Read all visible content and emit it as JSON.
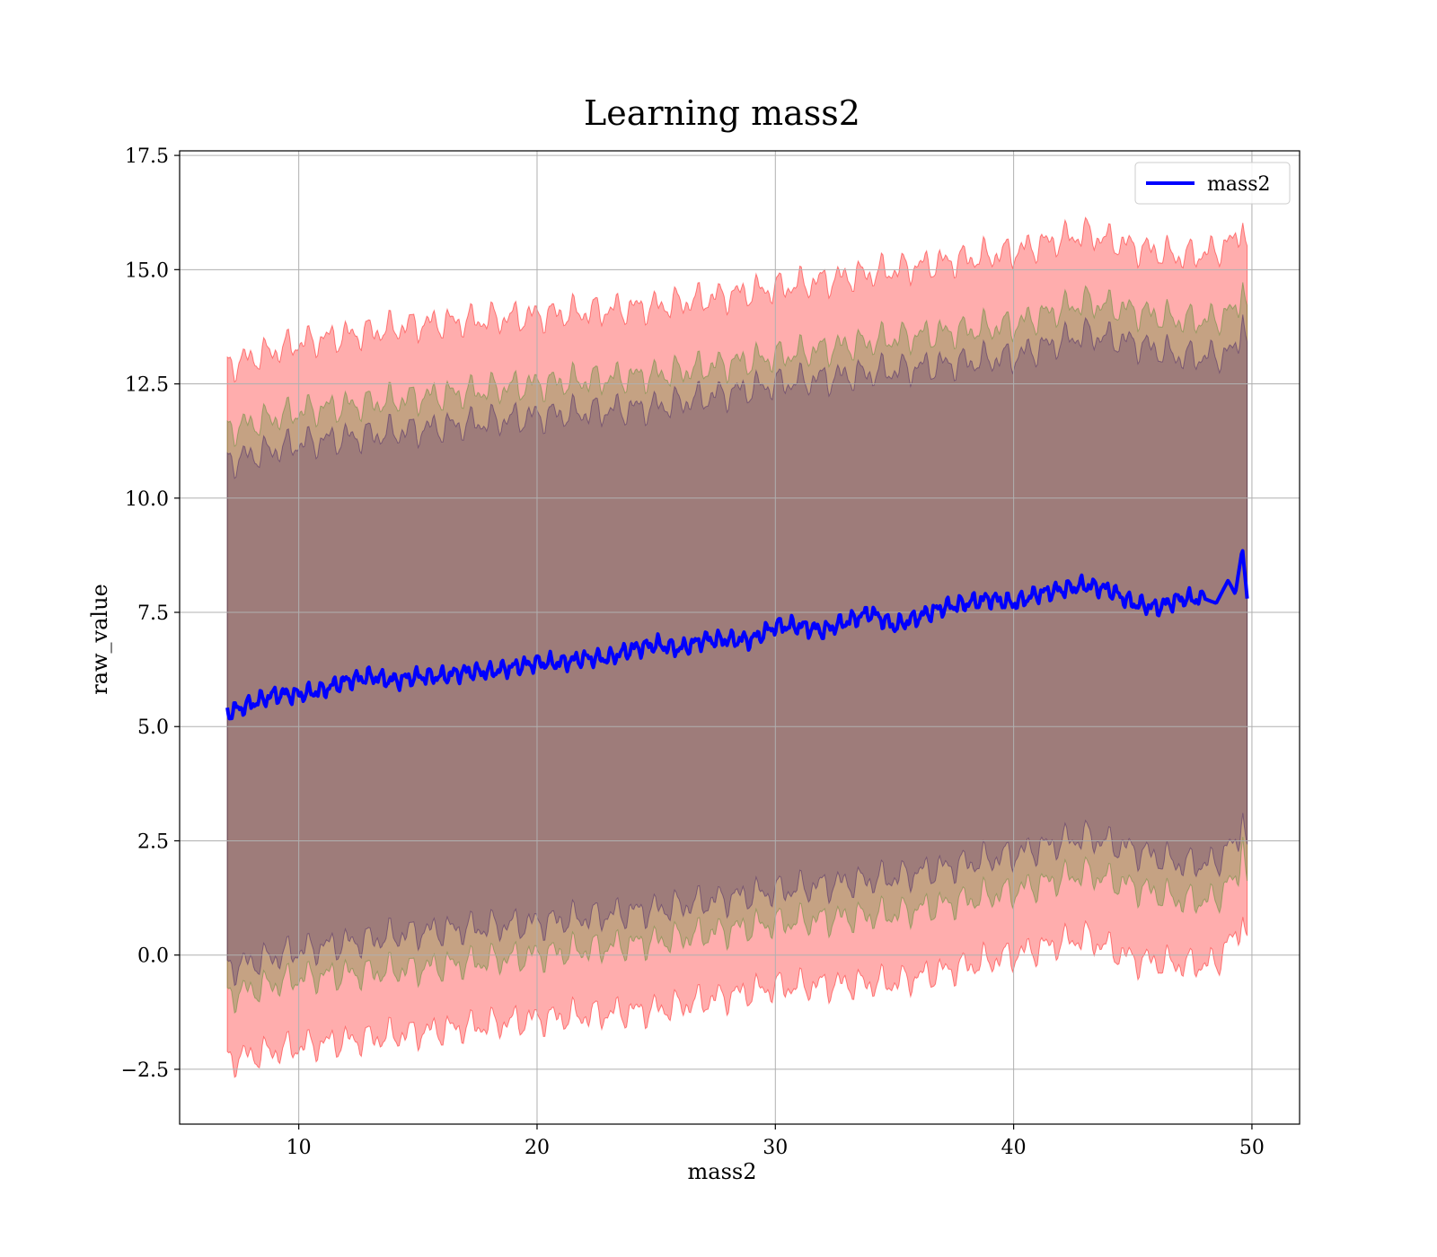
{
  "chart_data": {
    "type": "line",
    "title": "Learning mass2",
    "xlabel": "mass2",
    "ylabel": "raw_value",
    "xlim": [
      5,
      52
    ],
    "ylim": [
      -3.7,
      17.6
    ],
    "x_ticks": [
      10,
      20,
      30,
      40,
      50
    ],
    "y_ticks": [
      -2.5,
      0.0,
      2.5,
      5.0,
      7.5,
      10.0,
      12.5,
      15.0,
      17.5
    ],
    "x_tick_labels": [
      "10",
      "20",
      "30",
      "40",
      "50"
    ],
    "y_tick_labels": [
      "−2.5",
      "0.0",
      "2.5",
      "5.0",
      "7.5",
      "10.0",
      "12.5",
      "15.0",
      "17.5"
    ],
    "grid": true,
    "legend": {
      "position": "top-right",
      "entries": [
        "mass2"
      ]
    },
    "series": [
      {
        "name": "mass2",
        "color": "#0000ff",
        "x": [
          7,
          8,
          9,
          10,
          11,
          12,
          13,
          14,
          15,
          16,
          17,
          18,
          19,
          20,
          21,
          22,
          23,
          24,
          25,
          26,
          27,
          28,
          29,
          30,
          31,
          32,
          33,
          34,
          35,
          36,
          37,
          38,
          39,
          40,
          41,
          42,
          43,
          44,
          45,
          46,
          47,
          48,
          48.5,
          49,
          49.3,
          49.6,
          49.8
        ],
        "y": [
          5.3,
          5.5,
          5.7,
          5.7,
          5.8,
          6.0,
          6.1,
          6.0,
          6.1,
          6.1,
          6.2,
          6.2,
          6.3,
          6.4,
          6.4,
          6.5,
          6.5,
          6.7,
          6.8,
          6.7,
          6.9,
          6.9,
          6.9,
          7.2,
          7.2,
          7.1,
          7.3,
          7.5,
          7.2,
          7.4,
          7.6,
          7.7,
          7.8,
          7.7,
          7.9,
          8.0,
          8.1,
          8.0,
          7.7,
          7.6,
          7.8,
          7.8,
          7.7,
          8.2,
          7.9,
          8.9,
          7.8
        ]
      }
    ],
    "bands": [
      {
        "color": "#ff0000",
        "opacity": 0.32,
        "x": [
          7,
          10,
          15,
          20,
          25,
          30,
          35,
          40,
          43,
          45,
          47,
          48.5,
          49,
          49.4,
          49.6,
          49.8
        ],
        "upper": [
          12.9,
          13.4,
          13.8,
          14.0,
          14.2,
          14.6,
          15.0,
          15.4,
          15.8,
          15.5,
          15.3,
          15.4,
          15.6,
          15.6,
          16.3,
          15.3
        ],
        "lower": [
          -2.3,
          -2.0,
          -1.7,
          -1.4,
          -1.2,
          -0.7,
          -0.6,
          0.0,
          0.4,
          -0.1,
          -0.2,
          -0.2,
          0.3,
          0.3,
          1.1,
          0.2
        ]
      },
      {
        "color": "#4c8c2b",
        "opacity": 0.32,
        "x": [
          7,
          10,
          15,
          20,
          25,
          30,
          35,
          40,
          43,
          45,
          47,
          48.5,
          49,
          49.4,
          49.6,
          49.8
        ],
        "upper": [
          11.5,
          11.9,
          12.2,
          12.5,
          12.7,
          13.1,
          13.5,
          13.8,
          14.3,
          14.1,
          13.9,
          13.9,
          14.1,
          14.0,
          15.0,
          14.0
        ],
        "lower": [
          -0.9,
          -0.5,
          -0.3,
          0.0,
          0.3,
          0.7,
          0.9,
          1.4,
          1.8,
          1.5,
          1.2,
          1.2,
          1.6,
          1.5,
          2.9,
          1.4
        ]
      },
      {
        "color": "#3b1a66",
        "opacity": 0.28,
        "x": [
          7,
          10,
          15,
          20,
          25,
          30,
          35,
          40,
          43,
          45,
          47,
          48.5,
          49,
          49.4,
          49.6,
          49.8
        ],
        "upper": [
          10.8,
          11.2,
          11.5,
          11.8,
          12.0,
          12.5,
          12.8,
          13.1,
          13.6,
          13.4,
          13.1,
          13.1,
          13.2,
          13.2,
          14.3,
          13.2
        ],
        "lower": [
          -0.3,
          0.1,
          0.5,
          0.7,
          1.0,
          1.4,
          1.7,
          2.2,
          2.6,
          2.3,
          2.0,
          2.0,
          2.4,
          2.3,
          3.4,
          2.2
        ]
      }
    ]
  }
}
